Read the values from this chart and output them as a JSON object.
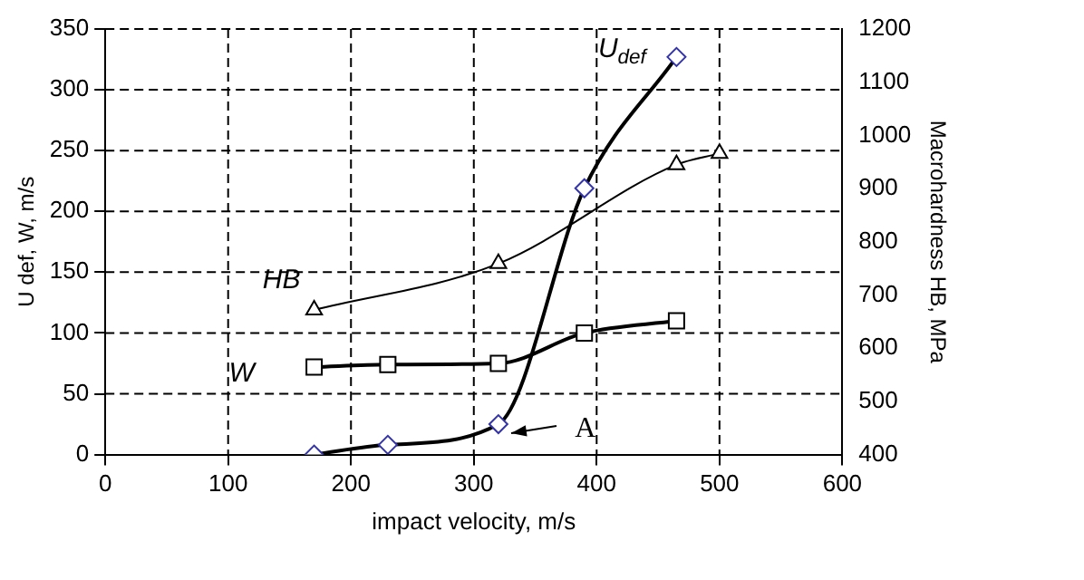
{
  "chart_data": {
    "type": "line",
    "xlabel": "impact velocity, m/s",
    "ylabel": "U def, W, m/s",
    "y2label": "Macrohardness HB, MPa",
    "xlim": [
      0,
      600
    ],
    "xticks": [
      0,
      100,
      200,
      300,
      400,
      500,
      600
    ],
    "ylim": [
      0,
      350
    ],
    "yticks": [
      0,
      50,
      100,
      150,
      200,
      250,
      300,
      350
    ],
    "y2lim": [
      400,
      1200
    ],
    "y2ticks": [
      400,
      500,
      600,
      700,
      800,
      900,
      1000,
      1100,
      1200
    ],
    "grid": true,
    "legend": false,
    "line_style": "solid",
    "series": [
      {
        "name": "U$_{def}$",
        "color": "#000000",
        "colors": [
          "#3333aa",
          "#3333aa",
          "#3333aa",
          "#3333aa",
          "#3333aa"
        ],
        "marker": "diamond",
        "x": [
          170,
          230,
          320,
          390,
          465
        ],
        "values": [
          0,
          8,
          25,
          219,
          327
        ]
      },
      {
        "name": "W",
        "color": "#000000",
        "marker": "square",
        "x": [
          170,
          230,
          320,
          390,
          465
        ],
        "values": [
          72,
          74,
          75,
          100,
          110
        ]
      },
      {
        "name": "HB",
        "color": "#000000",
        "marker": "triangle",
        "axis": "y2",
        "x": [
          170,
          320,
          465,
          500
        ],
        "values": [
          672,
          759,
          945,
          966
        ]
      }
    ],
    "annotations": [
      "A"
    ]
  }
}
